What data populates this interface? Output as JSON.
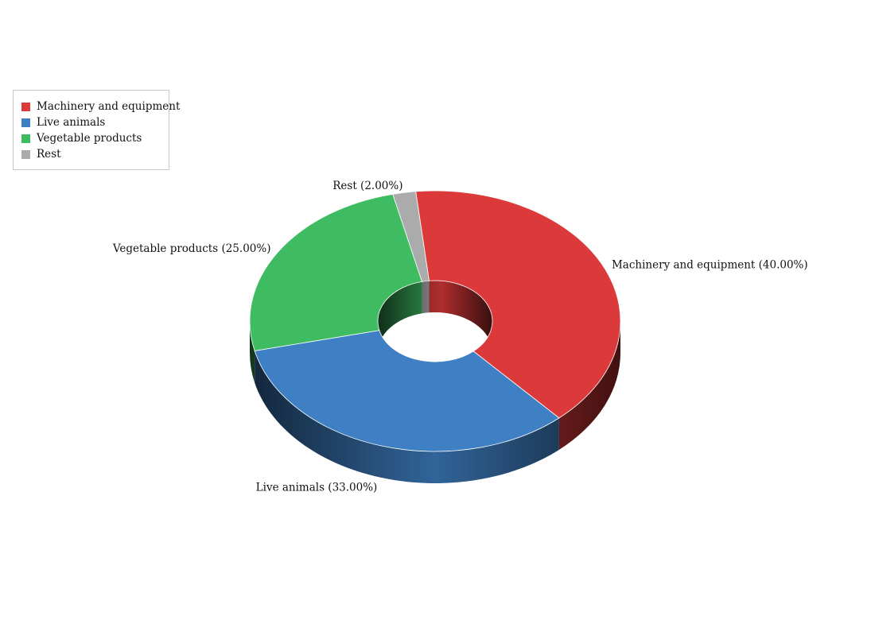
{
  "chart_data": {
    "type": "pie",
    "variant": "3d-donut",
    "title": "",
    "slices": [
      {
        "label": "Machinery and equipment",
        "value": 40.0,
        "display": "Machinery and equipment (40.00%)",
        "color": "#dc3a3a"
      },
      {
        "label": "Live animals",
        "value": 33.0,
        "display": "Live animals (33.00%)",
        "color": "#3f80c4"
      },
      {
        "label": "Vegetable products",
        "value": 25.0,
        "display": "Vegetable products (25.00%)",
        "color": "#3fbc62"
      },
      {
        "label": "Rest",
        "value": 2.0,
        "display": "Rest (2.00%)",
        "color": "#ababab"
      }
    ],
    "legend": {
      "position": "top-left",
      "items": [
        "Machinery and equipment",
        "Live animals",
        "Vegetable products",
        "Rest"
      ]
    }
  }
}
